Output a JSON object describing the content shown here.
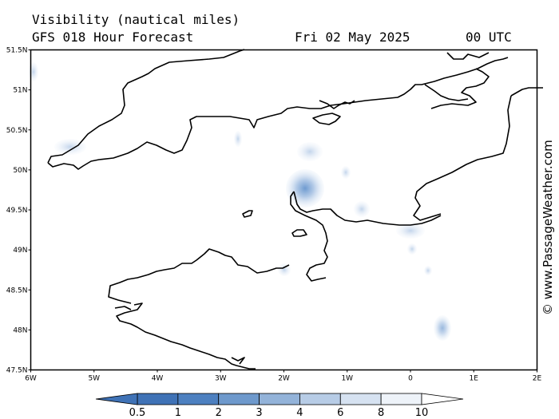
{
  "header": {
    "title": "Visibility (nautical miles)",
    "subtitle": "GFS 018 Hour Forecast",
    "date": "Fri 02 May 2025",
    "time": "00 UTC"
  },
  "credit": "© www.PassageWeather.com",
  "map": {
    "lon_ticks": [
      "6W",
      "5W",
      "4W",
      "3W",
      "2W",
      "1W",
      "0",
      "1E",
      "2E"
    ],
    "lat_ticks": [
      "51.5N",
      "51N",
      "50.5N",
      "50N",
      "49.5N",
      "49N",
      "48.5N",
      "48N",
      "47.5N"
    ]
  },
  "colorbar": {
    "labels": [
      "0.5",
      "1",
      "2",
      "3",
      "4",
      "6",
      "8",
      "10"
    ],
    "colors": [
      "#3f72b6",
      "#4d80c0",
      "#6e99cc",
      "#93b3d9",
      "#b7cce6",
      "#d6e2f1",
      "#eef3f9"
    ]
  }
}
